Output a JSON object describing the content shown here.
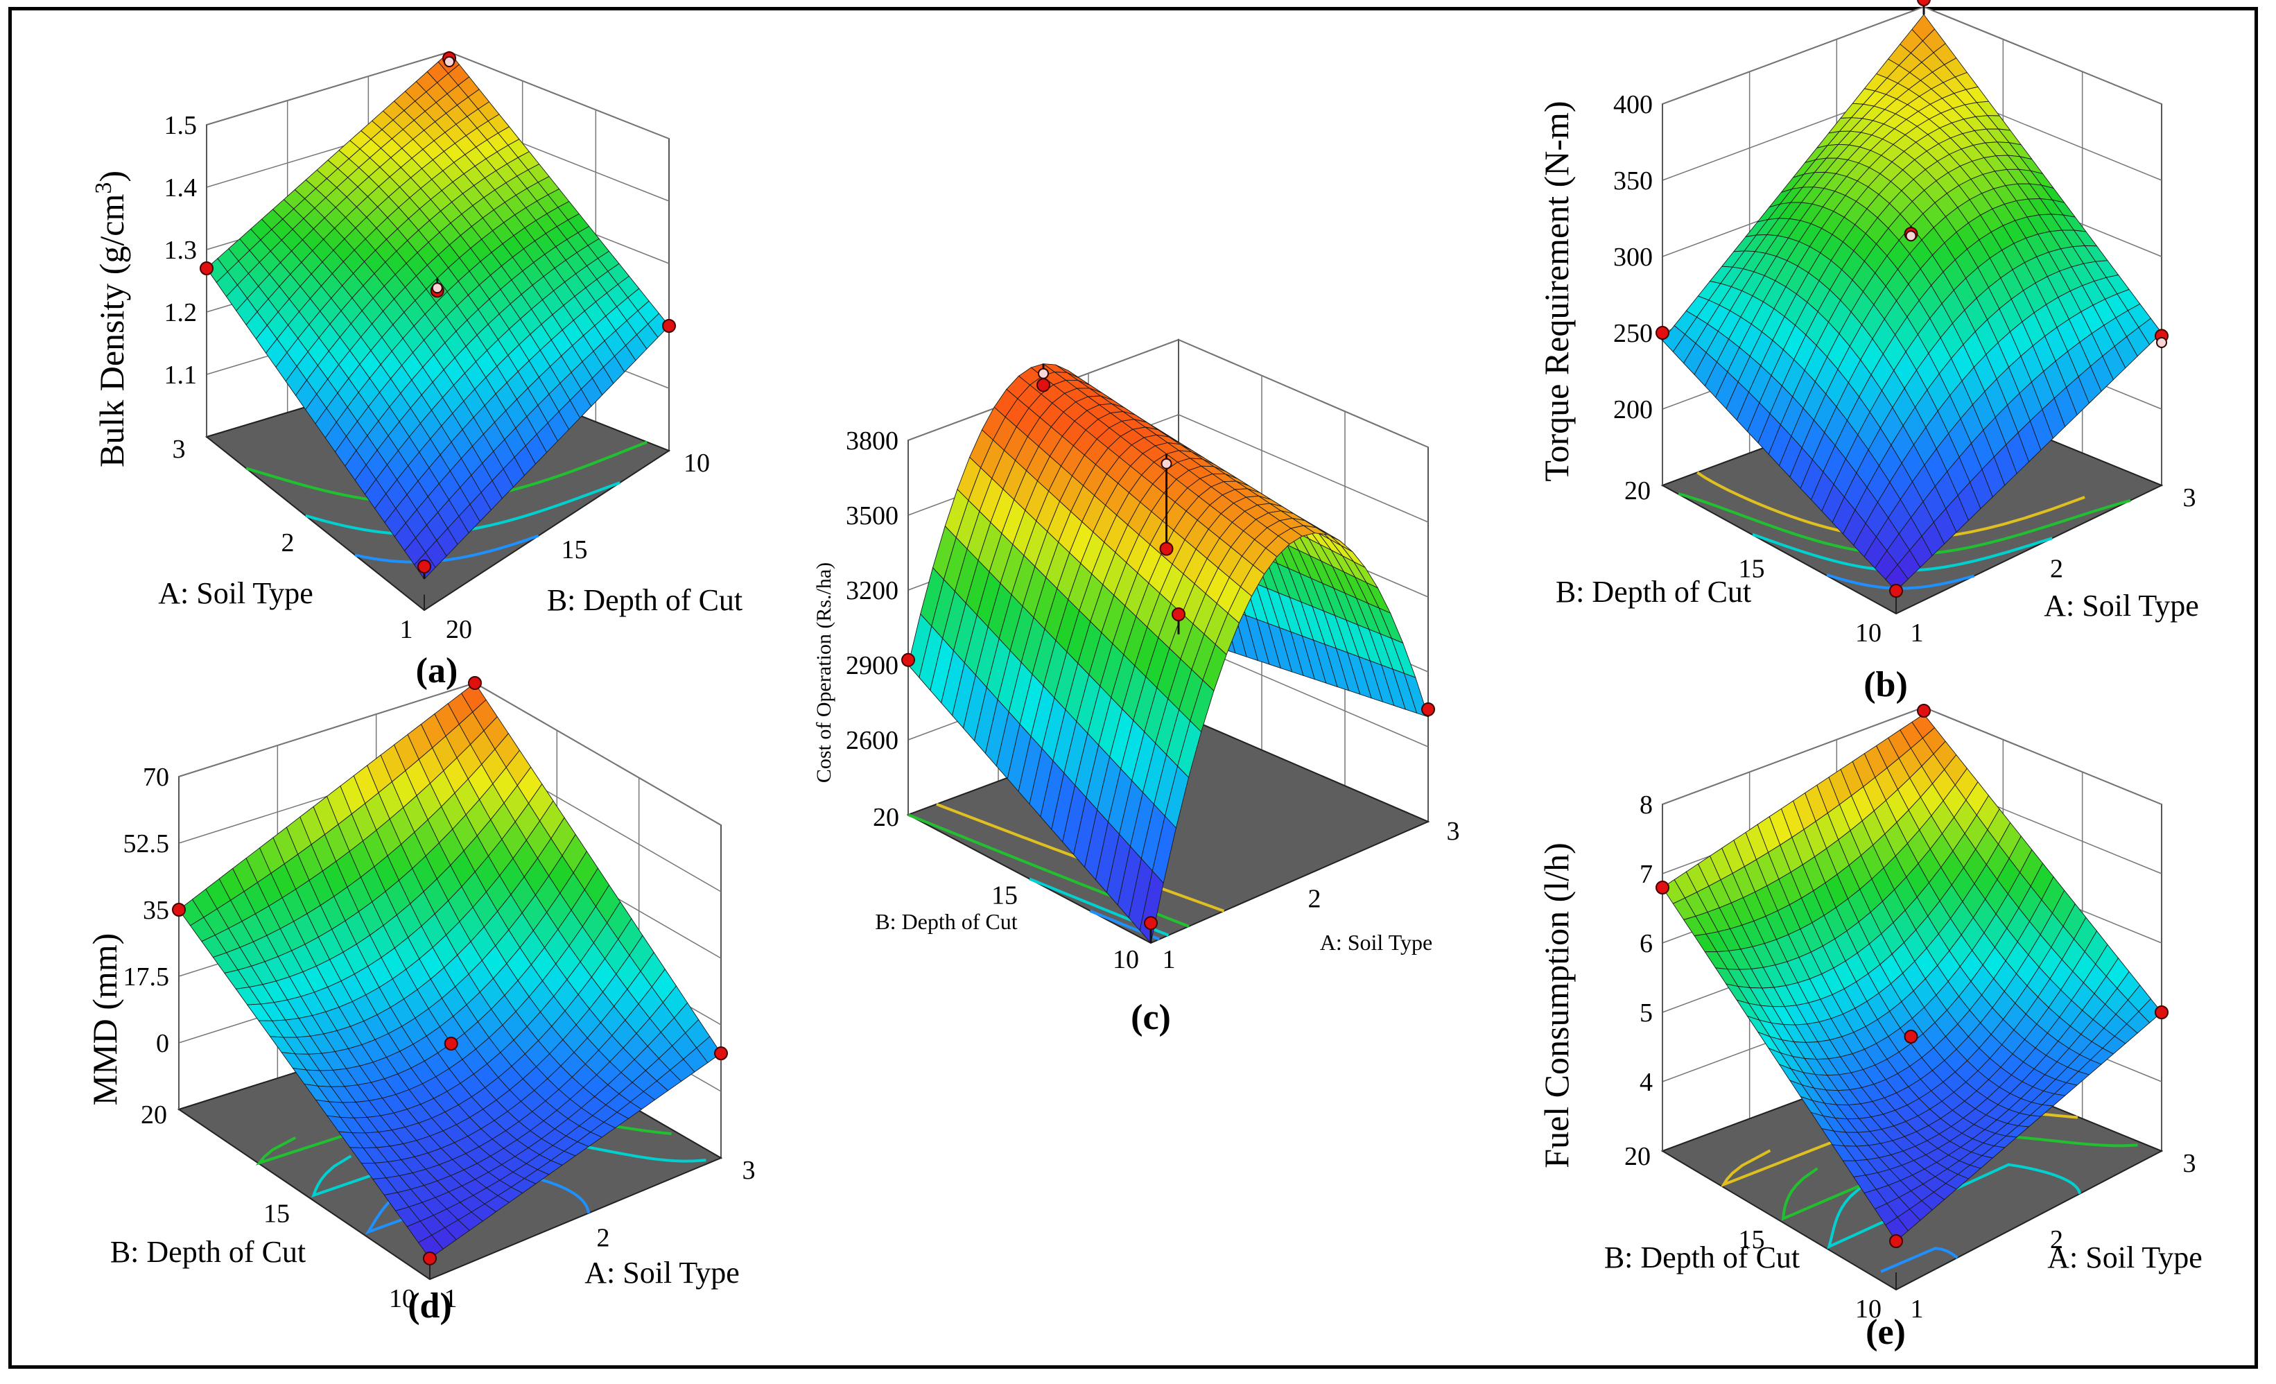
{
  "chart_data": [
    {
      "type": "surface3d",
      "panel": "a",
      "panel_label": "(a)",
      "title": "",
      "zlabel": "Bulk Density (g/cm³)",
      "zlabel_parts": [
        "Bulk Density (g/cm",
        "3",
        ")"
      ],
      "xlabel": "A: Soil Type",
      "ylabel": "B: Depth of Cut",
      "x_ticks": [
        "1",
        "2",
        "3"
      ],
      "y_ticks": [
        "10",
        "15",
        "20"
      ],
      "z_ticks": [
        "1.1",
        "1.2",
        "1.3",
        "1.4",
        "1.5"
      ],
      "zlim": [
        1.0,
        1.5
      ],
      "surface": {
        "A=1,B=10": 1.2,
        "A=3,B=10": 1.5,
        "A=1,B=20": 1.05,
        "A=3,B=20": 1.27,
        "center": 1.3
      },
      "design_points": [
        {
          "soil_type": 1,
          "depth": 20,
          "value": 1.07
        },
        {
          "soil_type": 2,
          "depth": 15,
          "value": 1.28
        },
        {
          "soil_type": 3,
          "depth": 10,
          "value": 1.49
        },
        {
          "soil_type": 1,
          "depth": 10,
          "value": 1.2
        },
        {
          "soil_type": 3,
          "depth": 20,
          "value": 1.27
        }
      ]
    },
    {
      "type": "surface3d",
      "panel": "b",
      "panel_label": "(b)",
      "title": "",
      "zlabel": "Torque Requirement (N-m)",
      "xlabel": "A: Soil Type",
      "ylabel": "B: Depth of Cut",
      "x_ticks": [
        "1",
        "2",
        "3"
      ],
      "y_ticks": [
        "10",
        "15",
        "20"
      ],
      "z_ticks": [
        "200",
        "250",
        "300",
        "350",
        "400"
      ],
      "zlim": [
        150,
        400
      ],
      "surface": {
        "A=1,B=10": 165,
        "A=3,B=10": 250,
        "A=1,B=20": 245,
        "A=3,B=20": 395,
        "center": 325
      },
      "design_points": [
        {
          "soil_type": 1,
          "depth": 20,
          "value": 250
        },
        {
          "soil_type": 3,
          "depth": 20,
          "value": 405
        },
        {
          "soil_type": 3,
          "depth": 10,
          "value": 248
        },
        {
          "soil_type": 2,
          "depth": 15,
          "value": 320
        },
        {
          "soil_type": 1,
          "depth": 10,
          "value": 165
        }
      ]
    },
    {
      "type": "surface3d",
      "panel": "c",
      "panel_label": "(c)",
      "title": "",
      "zlabel": "Cost of Operation (Rs./ha)",
      "xlabel": "A: Soil Type",
      "ylabel": "B: Depth of Cut",
      "x_ticks": [
        "1",
        "2",
        "3"
      ],
      "y_ticks": [
        "10",
        "15",
        "20"
      ],
      "z_ticks": [
        "2600",
        "2900",
        "3200",
        "3500",
        "3800"
      ],
      "zlim": [
        2300,
        3800
      ],
      "surface": {
        "A=1,B=10": 2300,
        "A=3,B=10": 2720,
        "A=1,B=20": 2900,
        "A=3,B=20": 2620,
        "center": 3780
      },
      "design_points": [
        {
          "soil_type": 1,
          "depth": 20,
          "value": 2920
        },
        {
          "soil_type": 2,
          "depth": 20,
          "value": 3820
        },
        {
          "soil_type": 2,
          "depth": 15,
          "value": 3400
        },
        {
          "soil_type": 3,
          "depth": 20,
          "value": 2700
        },
        {
          "soil_type": 1,
          "depth": 10,
          "value": 2380
        },
        {
          "soil_type": 3,
          "depth": 10,
          "value": 2750
        }
      ]
    },
    {
      "type": "surface3d",
      "panel": "d",
      "panel_label": "(d)",
      "title": "",
      "zlabel": "MMD (mm)",
      "xlabel": "A: Soil Type",
      "ylabel": "B: Depth of Cut",
      "x_ticks": [
        "1",
        "2",
        "3"
      ],
      "y_ticks": [
        "10",
        "15",
        "20"
      ],
      "z_ticks": [
        "0",
        "17.5",
        "35",
        "52.5",
        "70"
      ],
      "zlim": [
        -17.5,
        70
      ],
      "surface": {
        "A=1,B=10": -12,
        "A=3,B=10": 10,
        "A=1,B=20": 35,
        "A=3,B=20": 70,
        "center": 8
      },
      "design_points": [
        {
          "soil_type": 3,
          "depth": 20,
          "value": 70
        },
        {
          "soil_type": 1,
          "depth": 20,
          "value": 35
        },
        {
          "soil_type": 2,
          "depth": 15,
          "value": 8
        },
        {
          "soil_type": 3,
          "depth": 10,
          "value": 10
        },
        {
          "soil_type": 1,
          "depth": 10,
          "value": -12
        }
      ]
    },
    {
      "type": "surface3d",
      "panel": "e",
      "panel_label": "(e)",
      "title": "",
      "zlabel": "Fuel Consumption (l/h)",
      "xlabel": "A: Soil Type",
      "ylabel": "B: Depth of Cut",
      "x_ticks": [
        "1",
        "2",
        "3"
      ],
      "y_ticks": [
        "10",
        "15",
        "20"
      ],
      "z_ticks": [
        "4",
        "5",
        "6",
        "7",
        "8"
      ],
      "zlim": [
        3,
        8
      ],
      "surface": {
        "A=1,B=10": 3.7,
        "A=3,B=10": 5.0,
        "A=1,B=20": 6.8,
        "A=3,B=20": 7.9,
        "center": 4.7
      },
      "design_points": [
        {
          "soil_type": 1,
          "depth": 20,
          "value": 6.8
        },
        {
          "soil_type": 3,
          "depth": 20,
          "value": 7.95
        },
        {
          "soil_type": 2,
          "depth": 15,
          "value": 4.8
        },
        {
          "soil_type": 3,
          "depth": 10,
          "value": 5.0
        },
        {
          "soil_type": 1,
          "depth": 10,
          "value": 3.7
        }
      ]
    }
  ]
}
